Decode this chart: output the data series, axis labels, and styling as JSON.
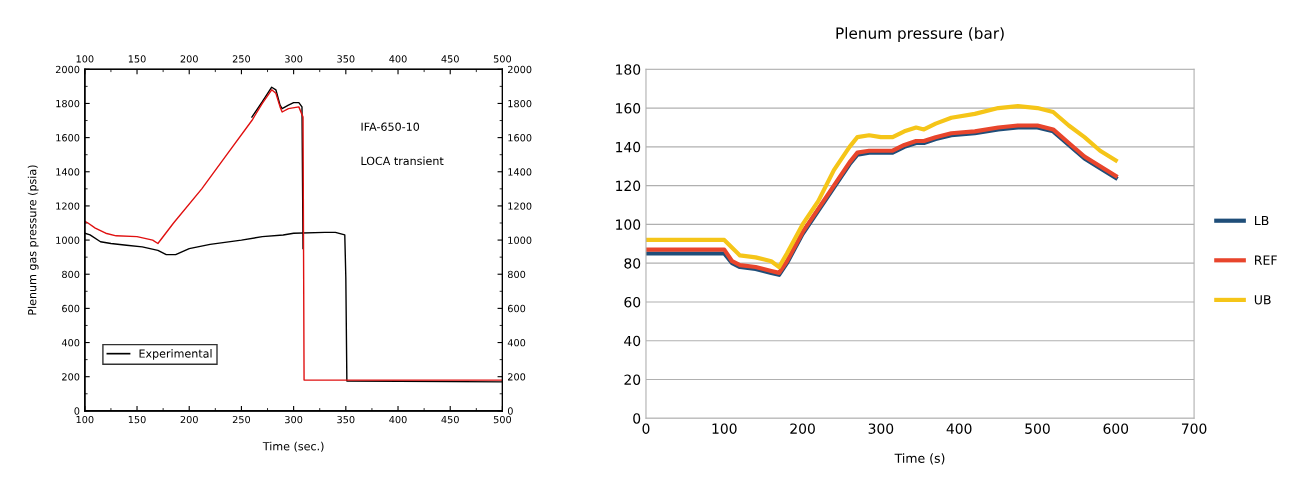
{
  "chart_data": [
    {
      "type": "line",
      "xlabel": "Time (sec.)",
      "ylabel": "Plenum gas pressure (psia)",
      "annotations": [
        "IFA-650-10",
        "LOCA transient"
      ],
      "xlim": [
        100,
        500
      ],
      "xticks": [
        100,
        150,
        200,
        250,
        300,
        350,
        400,
        450,
        500
      ],
      "ylim": [
        0,
        2000
      ],
      "yticks": [
        0,
        200,
        400,
        600,
        800,
        1000,
        1200,
        1400,
        1600,
        1800,
        2000
      ],
      "x2lim": [
        100,
        500
      ],
      "x2ticks": [
        100,
        150,
        200,
        250,
        300,
        350,
        400,
        450,
        500
      ],
      "y2lim": [
        0,
        2000
      ],
      "y2ticks": [
        0,
        200,
        400,
        600,
        800,
        1000,
        1200,
        1400,
        1600,
        1800,
        2000
      ],
      "grid": false,
      "legend": "bottom left",
      "line_style": "solid",
      "marker": "none",
      "series": [
        {
          "name": "Experimental",
          "color": "#000000",
          "x": [
            100,
            105,
            115,
            125,
            140,
            155,
            170,
            178,
            187,
            200,
            220,
            250,
            270,
            290,
            300,
            330,
            340,
            349,
            350,
            351,
            500
          ],
          "values": [
            1040,
            1030,
            990,
            980,
            970,
            960,
            940,
            915,
            915,
            950,
            975,
            1000,
            1020,
            1030,
            1040,
            1045,
            1045,
            1030,
            780,
            175,
            170
          ]
        },
        {
          "color": "#000000",
          "x": [
            260,
            270,
            279,
            283,
            287,
            289,
            295,
            300,
            305,
            308,
            309
          ],
          "values": [
            1720,
            1810,
            1895,
            1880,
            1790,
            1770,
            1790,
            1805,
            1805,
            1780,
            950
          ]
        },
        {
          "color": "#e01010",
          "x": [
            100,
            103,
            110,
            120,
            130,
            150,
            165,
            170,
            185,
            212,
            236,
            260,
            270,
            279,
            283,
            287,
            289,
            295,
            305,
            309,
            310,
            500
          ],
          "values": [
            1110,
            1100,
            1070,
            1040,
            1025,
            1020,
            1000,
            980,
            1100,
            1300,
            1500,
            1700,
            1800,
            1880,
            1860,
            1780,
            1750,
            1770,
            1780,
            1720,
            180,
            180
          ]
        }
      ]
    },
    {
      "type": "line",
      "title": "Plenum pressure (bar)",
      "xlabel": "Time (s)",
      "xlim": [
        0,
        700
      ],
      "xticks": [
        0,
        100,
        200,
        300,
        400,
        500,
        600,
        700
      ],
      "ylim": [
        0,
        180
      ],
      "yticks": [
        0,
        20,
        40,
        60,
        80,
        100,
        120,
        140,
        160,
        180
      ],
      "grid": "y",
      "legend": "right",
      "line_style": "solid",
      "marker": "none",
      "x": [
        0,
        100,
        110,
        120,
        140,
        160,
        170,
        180,
        200,
        220,
        240,
        260,
        270,
        285,
        300,
        315,
        330,
        345,
        355,
        370,
        390,
        420,
        450,
        475,
        500,
        520,
        540,
        560,
        580,
        600
      ],
      "series": [
        {
          "name": "LB",
          "color": "#1f4e79",
          "values": [
            85,
            85,
            80,
            78,
            77,
            75,
            74,
            80,
            95,
            107,
            119,
            131,
            136,
            137,
            137,
            137,
            140,
            142,
            142,
            144,
            146,
            147,
            149,
            150,
            150,
            148,
            141,
            134,
            129,
            124
          ]
        },
        {
          "name": "REF",
          "color": "#e8452c",
          "values": [
            87,
            87,
            81,
            79,
            78,
            76,
            75,
            81,
            96,
            108,
            120,
            132,
            137,
            138,
            138,
            138,
            141,
            143,
            143,
            145,
            147,
            148,
            150,
            151,
            151,
            149,
            142,
            135,
            130,
            125
          ]
        },
        {
          "name": "UB",
          "color": "#f5c518",
          "values": [
            92,
            92,
            88,
            84,
            83,
            81,
            78,
            85,
            100,
            112,
            128,
            140,
            145,
            146,
            145,
            145,
            148,
            150,
            149,
            152,
            155,
            157,
            160,
            161,
            160,
            158,
            151,
            145,
            138,
            133
          ]
        }
      ]
    }
  ]
}
